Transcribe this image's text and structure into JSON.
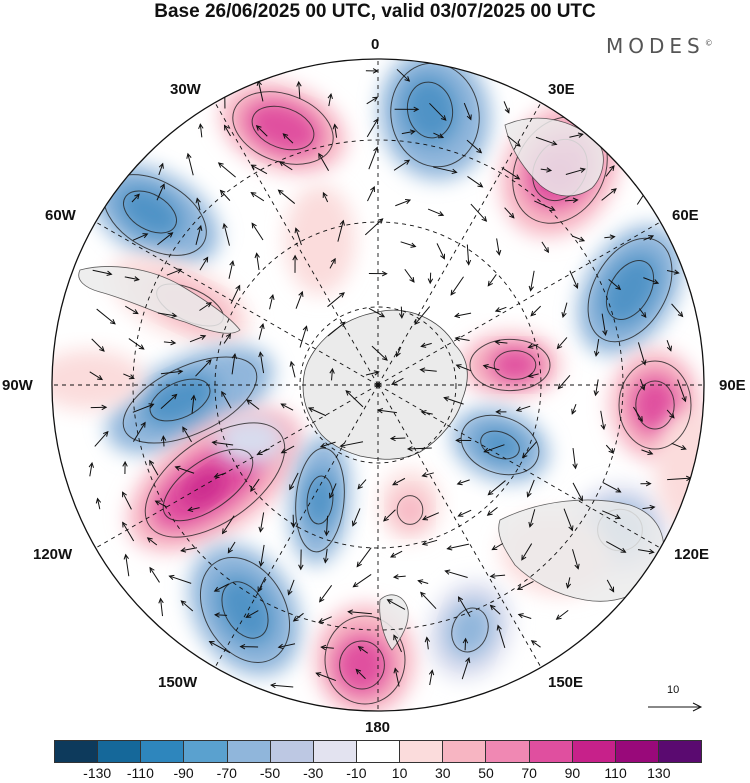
{
  "title": "Base 26/06/2025 00 UTC, valid 03/07/2025 00 UTC",
  "brand": "MODES",
  "brand_mark": "©",
  "longitude_labels": {
    "n0": "0",
    "e30": "30E",
    "e60": "60E",
    "e90": "90E",
    "e120": "120E",
    "e150": "150E",
    "s180": "180",
    "w150": "150W",
    "w120": "120W",
    "w90": "90W",
    "w60": "60W",
    "w30": "30W"
  },
  "reference_vector": {
    "value": "10",
    "icon": "arrow-right-icon"
  },
  "colorbar": {
    "colors": [
      "#0d3a5c",
      "#15689a",
      "#2e86bd",
      "#5aa1cf",
      "#90b6db",
      "#bdc8e3",
      "#e3e3f0",
      "#ffffff",
      "#fbdcdc",
      "#f7b5c2",
      "#f088b3",
      "#e04f9f",
      "#c7218a",
      "#99097a",
      "#5a0a70"
    ],
    "tick_labels": [
      "-130",
      "-110",
      "-90",
      "-70",
      "-50",
      "-30",
      "-10",
      "10",
      "30",
      "50",
      "70",
      "90",
      "110",
      "130"
    ]
  },
  "anomaly_colors": {
    "strong_negative": "#4f93c6",
    "negative": "#90b6db",
    "weak_negative": "#d8dcee",
    "weak_positive": "#fbdcdc",
    "positive": "#f7b5c2",
    "strong_positive": "#e04f9f",
    "very_strong_positive": "#c7218a",
    "land": "#ebebeb"
  }
}
